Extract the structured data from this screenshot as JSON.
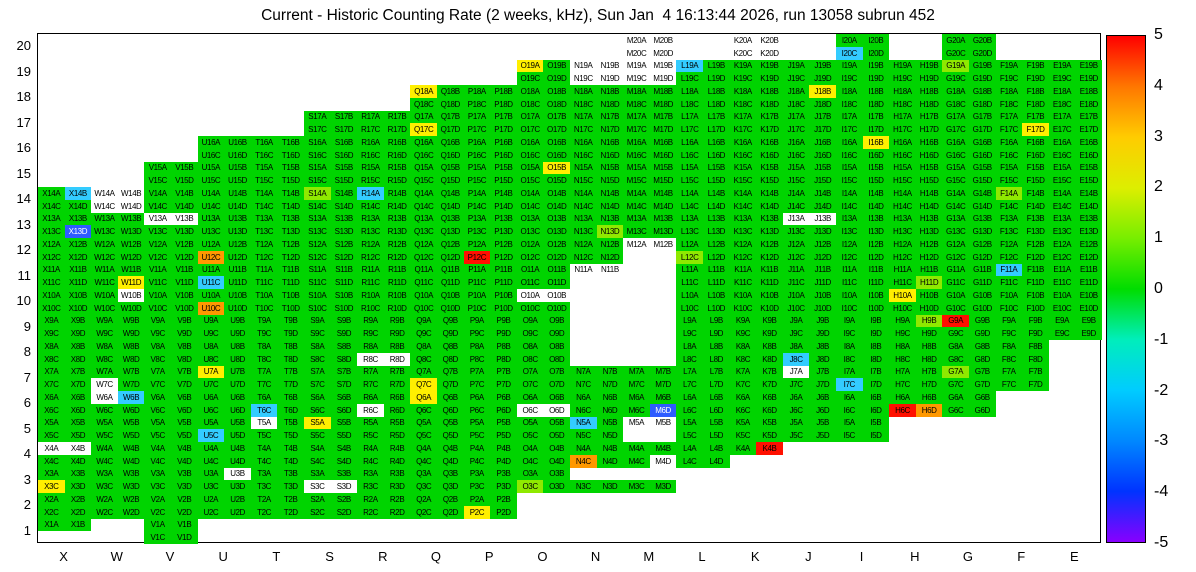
{
  "chart_data": {
    "type": "heatmap",
    "title": "Current - Historic Counting Rate (2 weeks, kHz), Sun Jan  4 16:13:44 2026, run 13058 subrun 452",
    "xlabel": "",
    "ylabel": "",
    "columns": [
      "X",
      "W",
      "V",
      "U",
      "T",
      "S",
      "R",
      "Q",
      "P",
      "O",
      "N",
      "M",
      "L",
      "K",
      "J",
      "I",
      "H",
      "G",
      "F",
      "E"
    ],
    "rows": [
      20,
      19,
      18,
      17,
      16,
      15,
      14,
      13,
      12,
      11,
      10,
      9,
      8,
      7,
      6,
      5,
      4,
      3,
      2,
      1
    ],
    "cell_letters": [
      "A",
      "B",
      "C",
      "D"
    ],
    "layout": {
      "20": {
        "groups": [
          "M",
          "K",
          "I",
          "G"
        ]
      },
      "19": {
        "span": [
          "O",
          "E"
        ]
      },
      "18": {
        "span": [
          "Q",
          "E"
        ]
      },
      "17": {
        "span": [
          "S",
          "E"
        ]
      },
      "16": {
        "span": [
          "U",
          "E"
        ]
      },
      "15": {
        "span": [
          "V",
          "E"
        ]
      },
      "14": {
        "span": [
          "X",
          "E"
        ]
      },
      "13": {
        "span": [
          "X",
          "E"
        ]
      },
      "12": {
        "span": [
          "X",
          "E"
        ]
      },
      "11": {
        "span": [
          "X",
          "E"
        ]
      },
      "10": {
        "span": [
          "X",
          "E"
        ]
      },
      "9": {
        "span": [
          "X",
          "E"
        ]
      },
      "8": {
        "span": [
          "X",
          "F"
        ]
      },
      "7": {
        "span": [
          "X",
          "F"
        ]
      },
      "6": {
        "span": [
          "X",
          "G"
        ]
      },
      "5": {
        "span": [
          "X",
          "I"
        ]
      },
      "4": {
        "span": [
          "X",
          "K"
        ]
      },
      "3": {
        "span": [
          "X",
          "M"
        ]
      },
      "2": {
        "span": [
          "X",
          "P"
        ]
      },
      "1": {
        "groups": [
          "X",
          "V"
        ]
      }
    },
    "palette": {
      "base": "#00d400",
      "white": "#ffffff",
      "chartreuse": "#8fe900",
      "yellow": "#ffef00",
      "orange": "#ff9800",
      "red": "#ff1000",
      "cyan": "#33ccff",
      "blue": "#2e5cff"
    },
    "cells": {
      "M20A": "white",
      "M20B": "white",
      "M20C": "white",
      "M20D": "white",
      "K20A": "white",
      "K20B": "white",
      "K20C": "white",
      "K20D": "white",
      "I20C": "cyan",
      "O19A": "yellow",
      "L19A": "cyan",
      "G19A": "chartreuse",
      "N19A": "white",
      "N19B": "white",
      "N19C": "white",
      "N19D": "white",
      "M19A": "white",
      "M19B": "white",
      "M19C": "white",
      "M19D": "white",
      "Q18A": "yellow",
      "J18B": "yellow",
      "Q17C": "yellow",
      "F17D": "yellow",
      "I16B": "yellow",
      "O15B": "yellow",
      "X14B": "cyan",
      "S14A": "chartreuse",
      "R14A": "cyan",
      "F14A": "chartreuse",
      "W14A": "white",
      "W14B": "white",
      "W14C": "white",
      "W14D": "white",
      "X13D": "blue",
      "N13D": "chartreuse",
      "V13A": "white",
      "V13B": "white",
      "J13A": "white",
      "J13B": "white",
      "U12C": "orange",
      "P12C": "red",
      "L12C": "chartreuse",
      "M12A": "white",
      "M12B": "white",
      "M12C": "absent",
      "M12D": "absent",
      "W11D": "yellow",
      "U11C": "cyan",
      "H11D": "chartreuse",
      "F11A": "cyan",
      "N11A": "white",
      "N11B": "white",
      "N11C": "absent",
      "N11D": "absent",
      "M11A": "absent",
      "M11B": "absent",
      "M11C": "absent",
      "M11D": "absent",
      "U10C": "orange",
      "H10A": "yellow",
      "W10B": "white",
      "O10A": "white",
      "O10B": "white",
      "N10A": "absent",
      "N10B": "absent",
      "N10C": "absent",
      "N10D": "absent",
      "M10A": "absent",
      "M10B": "absent",
      "M10C": "absent",
      "M10D": "absent",
      "H9B": "chartreuse",
      "G9A": "red",
      "N9A": "absent",
      "N9B": "absent",
      "N9C": "absent",
      "N9D": "absent",
      "M9A": "absent",
      "M9B": "absent",
      "M9C": "absent",
      "M9D": "absent",
      "J8C": "cyan",
      "R8C": "white",
      "R8D": "white",
      "N8A": "absent",
      "N8B": "absent",
      "N8C": "absent",
      "N8D": "absent",
      "M8A": "absent",
      "M8B": "absent",
      "M8C": "absent",
      "M8D": "absent",
      "U7A": "yellow",
      "Q7C": "yellow",
      "I7C": "cyan",
      "G7A": "chartreuse",
      "W7C": "white",
      "J7A": "white",
      "W6A": "white",
      "W6B": "cyan",
      "T6C": "cyan",
      "Q6A": "yellow",
      "R6C": "white",
      "O6C": "white",
      "O6D": "white",
      "M6D": "blue",
      "H6C": "red",
      "H6D": "orange",
      "U5C": "cyan",
      "S5A": "yellow",
      "N5A": "cyan",
      "T5A": "white",
      "M5A": "white",
      "M5B": "white",
      "M5C": "absent",
      "M5D": "absent",
      "X4A": "white",
      "X4B": "white",
      "N4C": "orange",
      "M4D": "white",
      "K4B": "red",
      "K4C": "absent",
      "K4D": "absent",
      "X3C": "yellow",
      "U3B": "white",
      "S3C": "white",
      "S3D": "white",
      "O3C": "chartreuse",
      "N3A": "absent",
      "N3B": "absent",
      "M3A": "absent",
      "M3B": "absent",
      "P2C": "yellow",
      "X1C": "absent",
      "X1D": "absent"
    },
    "colorbar": {
      "ticks": [
        "5",
        "4",
        "3",
        "2",
        "1",
        "0",
        "-1",
        "-2",
        "-3",
        "-4",
        "-5"
      ],
      "gradient_bottom_to_top": [
        "#8800ff",
        "#0033ff",
        "#0088ff",
        "#00ccff",
        "#00eebb",
        "#00dd00",
        "#77ee00",
        "#ddee00",
        "#ffcc00",
        "#ff7700",
        "#ff0000"
      ],
      "min": -5,
      "max": 5
    }
  }
}
